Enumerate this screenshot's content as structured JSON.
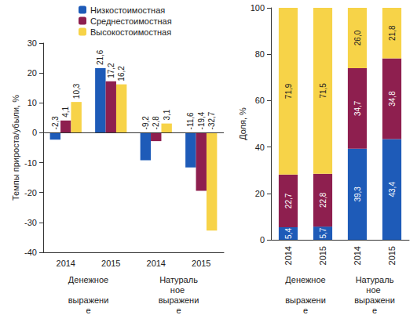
{
  "chart_data": [
    {
      "type": "bar",
      "ylabel": "Темпы прироста/убыли, %",
      "categories": [
        "2014",
        "2015",
        "2014",
        "2015"
      ],
      "category_groups": [
        "Денежное выражение",
        "Натуральное выражение"
      ],
      "series": [
        {
          "name": "Низкостоимостная",
          "color": "#1e5bb8",
          "values": [
            -2.3,
            21.6,
            -9.2,
            -11.6
          ],
          "value_labels": [
            "-2,3",
            "21,6",
            "-9,2",
            "-11,6"
          ]
        },
        {
          "name": "Среднестоимостная",
          "color": "#8e1f4f",
          "values": [
            4.1,
            17.2,
            -2.8,
            -19.4
          ],
          "value_labels": [
            "4,1",
            "17,2",
            "-2,8",
            "-19,4"
          ]
        },
        {
          "name": "Высокостоимостная",
          "color": "#f7d348",
          "values": [
            10.3,
            16.2,
            3.1,
            -32.7
          ],
          "value_labels": [
            "10,3",
            "16,2",
            "3,1",
            "-32,7"
          ]
        }
      ],
      "ylim": [
        -40,
        30
      ],
      "yticks": [
        -40,
        -30,
        -20,
        -10,
        0,
        10,
        20,
        30
      ],
      "grid": false,
      "legend": "upper left",
      "data_labels": true
    },
    {
      "type": "bar",
      "ylabel": "Доля, %",
      "categories": [
        "2014",
        "2015",
        "2014",
        "2015"
      ],
      "category_groups": [
        "Денежное выражение",
        "Натуральное выражение"
      ],
      "series": [
        {
          "name": "Низкостоимостная",
          "color": "#1e5bb8",
          "values": [
            5.4,
            5.7,
            39.3,
            43.4
          ],
          "value_labels": [
            "5,4",
            "5,7",
            "39,3",
            "43,4"
          ]
        },
        {
          "name": "Среднестоимостная",
          "color": "#8e1f4f",
          "values": [
            22.7,
            22.8,
            34.7,
            34.8
          ],
          "value_labels": [
            "22,7",
            "22,8",
            "34,7",
            "34,8"
          ]
        },
        {
          "name": "Высокостоимостная",
          "color": "#f7d348",
          "values": [
            71.9,
            71.5,
            26.0,
            21.8
          ],
          "value_labels": [
            "71,9",
            "71,5",
            "26,0",
            "21,8"
          ]
        }
      ],
      "ylim": [
        0,
        100
      ],
      "yticks": [
        0,
        20,
        40,
        60,
        80,
        100
      ],
      "grid": false,
      "stacked": true,
      "data_labels": true
    }
  ]
}
